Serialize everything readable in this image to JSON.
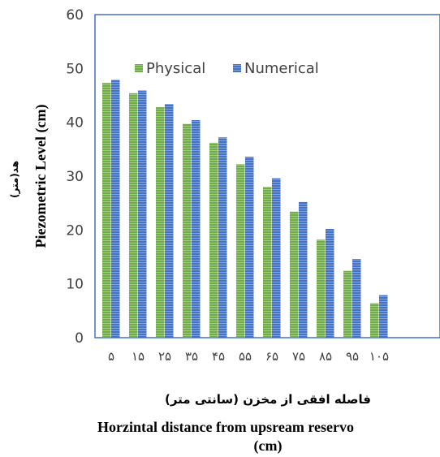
{
  "chart_data": {
    "type": "bar",
    "categories": [
      "۵",
      "۱۵",
      "۲۵",
      "۳۵",
      "۴۵",
      "۵۵",
      "۶۵",
      "۷۵",
      "۸۵",
      "۹۵",
      "۱۰۵"
    ],
    "series": [
      {
        "name": "Physical",
        "values": [
          47.3,
          45.4,
          42.8,
          39.7,
          36.2,
          32.2,
          28.0,
          23.4,
          18.2,
          12.4,
          6.4
        ],
        "color": "#70ad47"
      },
      {
        "name": "Numerical",
        "values": [
          47.9,
          45.9,
          43.4,
          40.4,
          37.2,
          33.6,
          29.6,
          25.2,
          20.2,
          14.6,
          7.9
        ],
        "color": "#4472c4"
      }
    ],
    "ylim": [
      0,
      60
    ],
    "yticks": [
      0,
      10,
      20,
      30,
      40,
      50,
      60
    ],
    "ylabel": "Piezometric Level (cm)",
    "ylabel_fa": "هد(متر)",
    "xlabel_fa": "فاصله افقی از مخزن (سانتی متر)",
    "xlabel_line1": "Horzintal distance from upsream reservo",
    "xlabel_line2": "(cm)",
    "legend_position": "top-left",
    "grid": false
  }
}
